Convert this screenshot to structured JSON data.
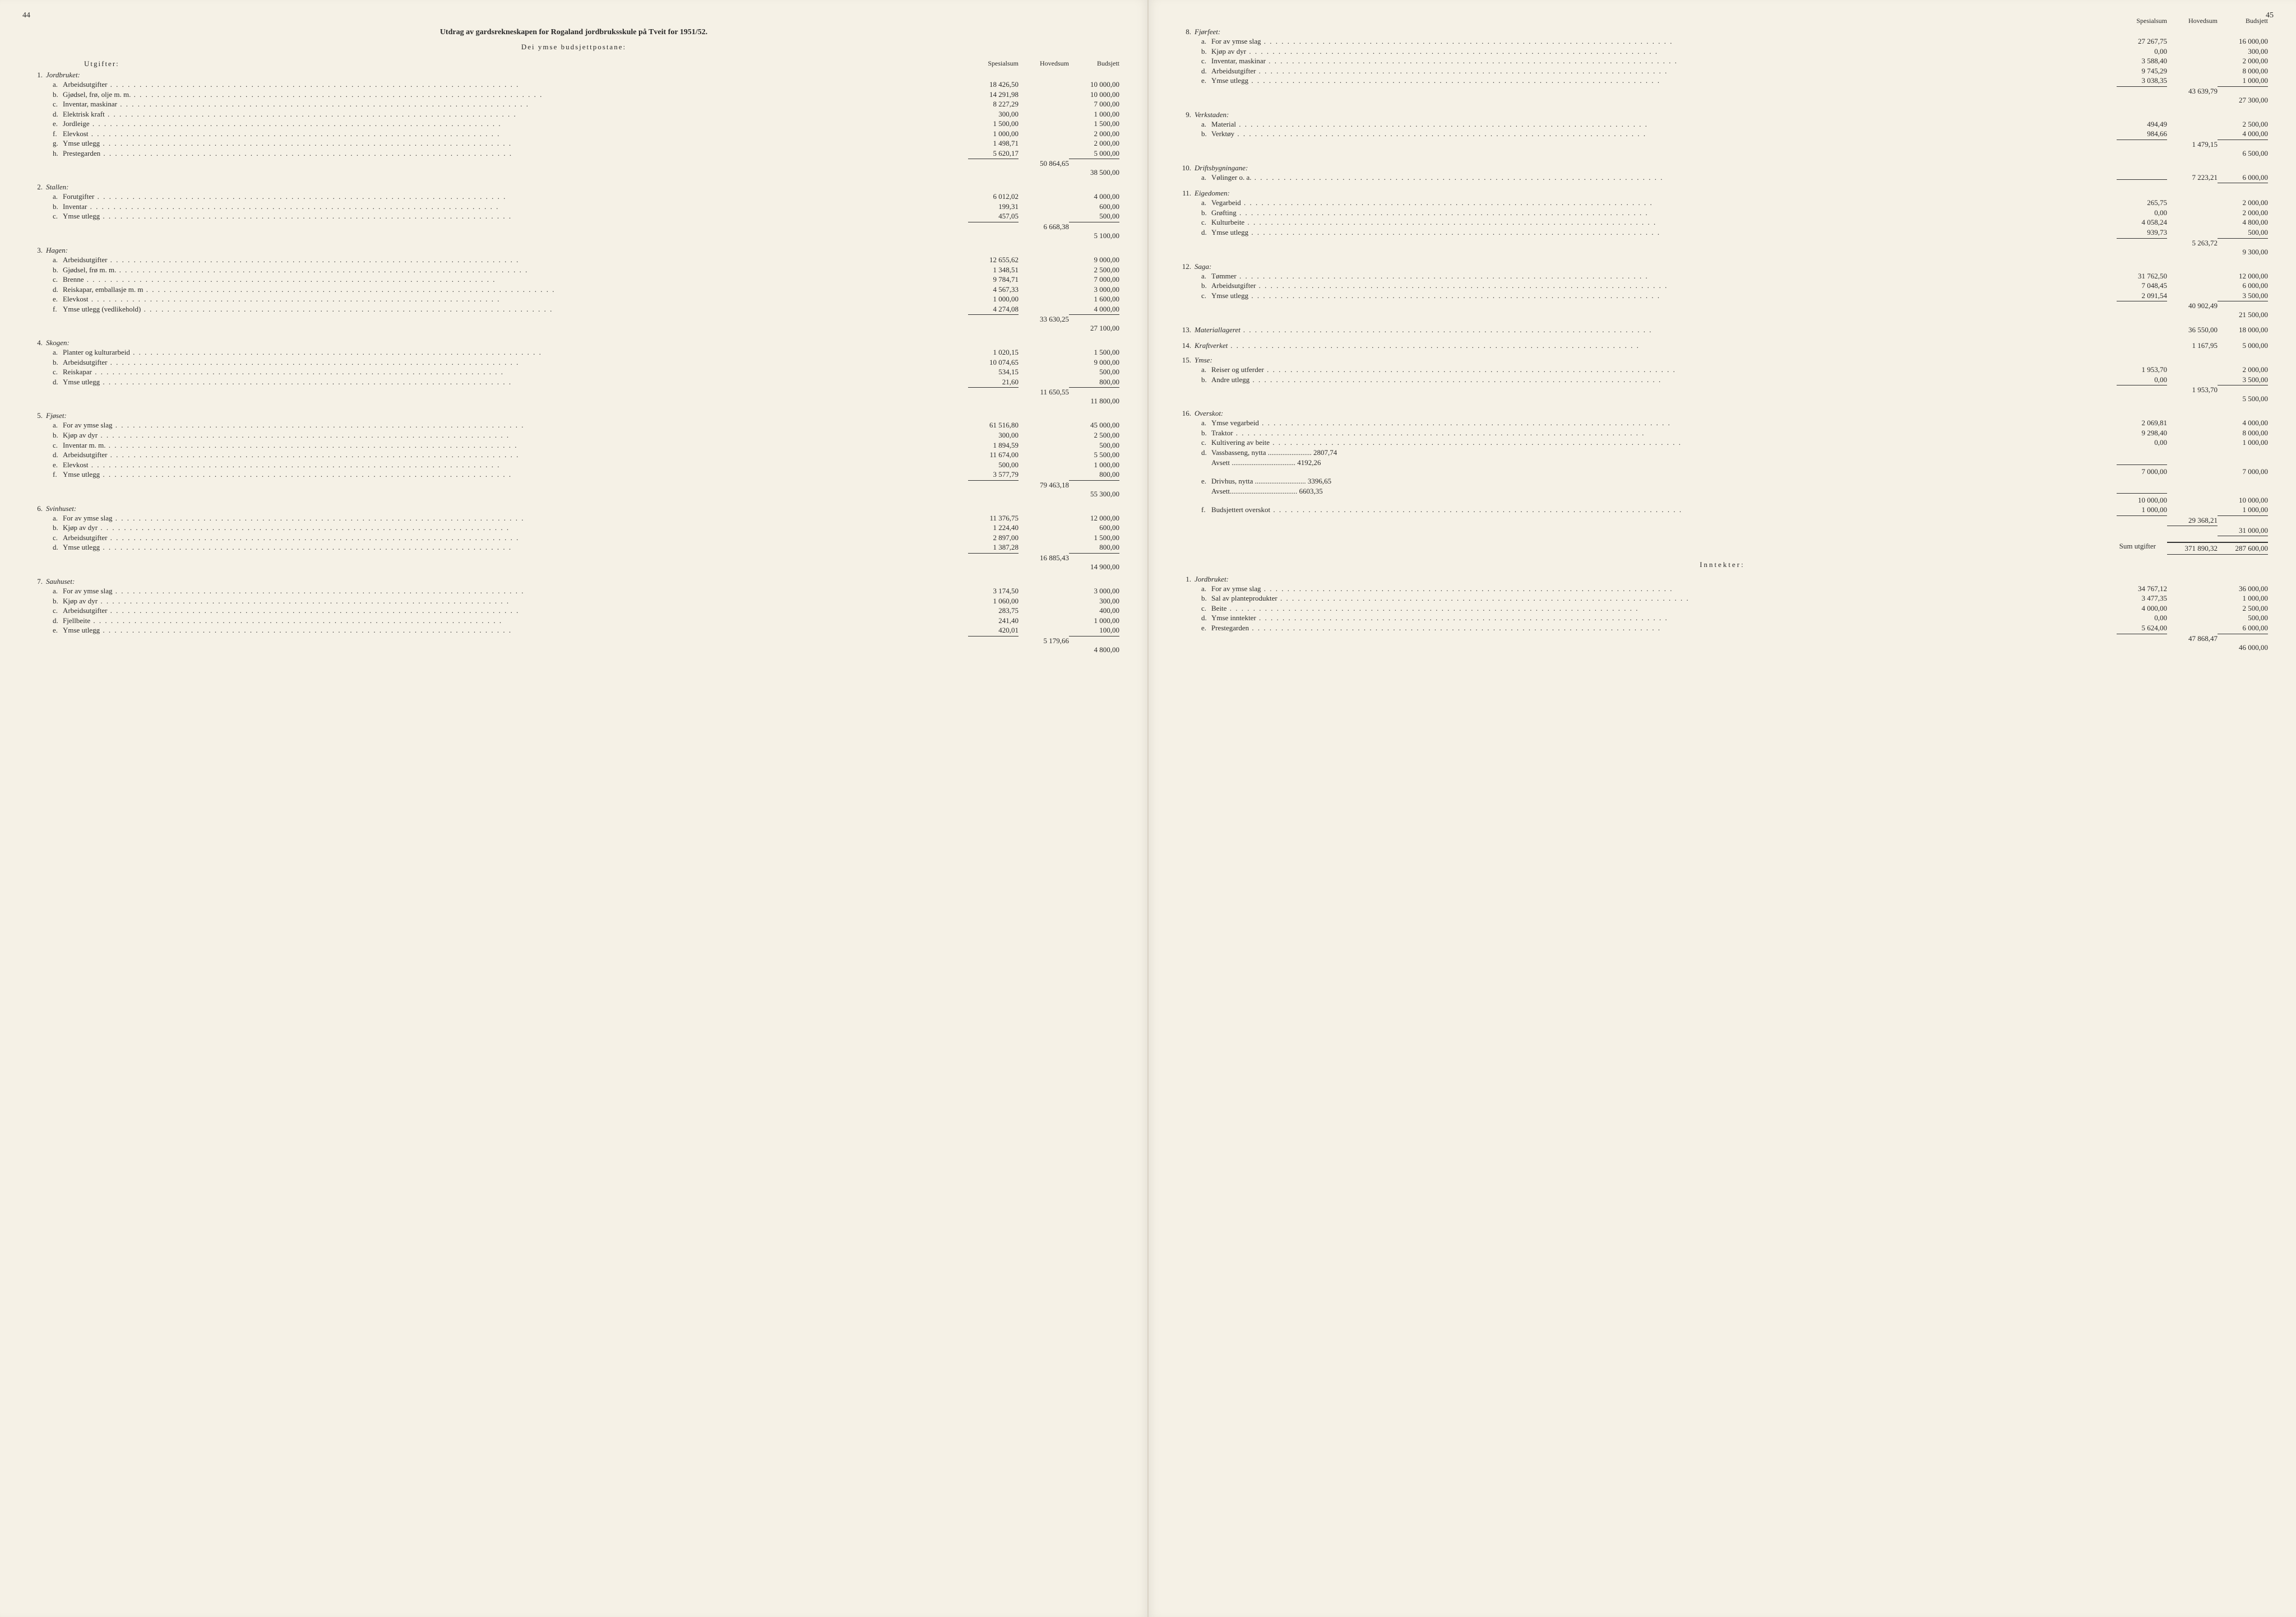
{
  "pageLeft": "44",
  "pageRight": "45",
  "title": "Utdrag av gardsrekneskapen for Rogaland jordbruksskule på Tveit for 1951/52.",
  "subtitle": "Dei ymse budsjettpostane:",
  "headers": {
    "utgifter": "Utgifter:",
    "inntekter": "Inntekter:",
    "spesialsum": "Spesialsum",
    "hovedsum": "Hovedsum",
    "budsjett": "Budsjett"
  },
  "sumUtgifterLabel": "Sum utgifter",
  "sumUtgifterHoved": "371 890,32",
  "sumUtgifterBud": "287 600,00",
  "utgifter": [
    {
      "n": "1.",
      "name": "Jordbruket:",
      "hoved": "50 864,65",
      "budTotal": "38 500,00",
      "items": [
        {
          "l": "a.",
          "t": "Arbeidsutgifter",
          "s": "18 426,50",
          "b": "10 000,00"
        },
        {
          "l": "b.",
          "t": "Gjødsel, frø, olje m. m.",
          "s": "14 291,98",
          "b": "10 000,00"
        },
        {
          "l": "c.",
          "t": "Inventar, maskinar",
          "s": "8 227,29",
          "b": "7 000,00"
        },
        {
          "l": "d.",
          "t": "Elektrisk kraft",
          "s": "300,00",
          "b": "1 000,00"
        },
        {
          "l": "e.",
          "t": "Jordleige",
          "s": "1 500,00",
          "b": "1 500,00"
        },
        {
          "l": "f.",
          "t": "Elevkost",
          "s": "1 000,00",
          "b": "2 000,00"
        },
        {
          "l": "g.",
          "t": "Ymse utlegg",
          "s": "1 498,71",
          "b": "2 000,00"
        },
        {
          "l": "h.",
          "t": "Prestegarden",
          "s": "5 620,17",
          "b": "5 000,00"
        }
      ]
    },
    {
      "n": "2.",
      "name": "Stallen:",
      "hoved": "6 668,38",
      "budTotal": "5 100,00",
      "items": [
        {
          "l": "a.",
          "t": "Forutgifter",
          "s": "6 012,02",
          "b": "4 000,00"
        },
        {
          "l": "b.",
          "t": "Inventar",
          "s": "199,31",
          "b": "600,00"
        },
        {
          "l": "c.",
          "t": "Ymse utlegg",
          "s": "457,05",
          "b": "500,00"
        }
      ]
    },
    {
      "n": "3.",
      "name": "Hagen:",
      "hoved": "33 630,25",
      "budTotal": "27 100,00",
      "items": [
        {
          "l": "a.",
          "t": "Arbeidsutgifter",
          "s": "12 655,62",
          "b": "9 000,00"
        },
        {
          "l": "b.",
          "t": "Gjødsel, frø m. m.",
          "s": "1 348,51",
          "b": "2 500,00"
        },
        {
          "l": "c.",
          "t": "Brenne",
          "s": "9 784,71",
          "b": "7 000,00"
        },
        {
          "l": "d.",
          "t": "Reiskapar, emballasje m. m",
          "s": "4 567,33",
          "b": "3 000,00"
        },
        {
          "l": "e.",
          "t": "Elevkost",
          "s": "1 000,00",
          "b": "1 600,00"
        },
        {
          "l": "f.",
          "t": "Ymse utlegg (vedlikehold)",
          "s": "4 274,08",
          "b": "4 000,00"
        }
      ]
    },
    {
      "n": "4.",
      "name": "Skogen:",
      "hoved": "11 650,55",
      "budTotal": "11 800,00",
      "items": [
        {
          "l": "a.",
          "t": "Planter og kulturarbeid",
          "s": "1 020,15",
          "b": "1 500,00"
        },
        {
          "l": "b.",
          "t": "Arbeidsutgifter",
          "s": "10 074,65",
          "b": "9 000,00"
        },
        {
          "l": "c.",
          "t": "Reiskapar",
          "s": "534,15",
          "b": "500,00"
        },
        {
          "l": "d.",
          "t": "Ymse utlegg",
          "s": "21,60",
          "b": "800,00"
        }
      ]
    },
    {
      "n": "5.",
      "name": "Fjøset:",
      "hoved": "79 463,18",
      "budTotal": "55 300,00",
      "items": [
        {
          "l": "a.",
          "t": "For av ymse slag",
          "s": "61 516,80",
          "b": "45 000,00"
        },
        {
          "l": "b.",
          "t": "Kjøp av dyr",
          "s": "300,00",
          "b": "2 500,00"
        },
        {
          "l": "c.",
          "t": "Inventar m. m.",
          "s": "1 894,59",
          "b": "500,00"
        },
        {
          "l": "d.",
          "t": "Arbeidsutgifter",
          "s": "11 674,00",
          "b": "5 500,00"
        },
        {
          "l": "e.",
          "t": "Elevkost",
          "s": "500,00",
          "b": "1 000,00"
        },
        {
          "l": "f.",
          "t": "Ymse utlegg",
          "s": "3 577,79",
          "b": "800,00"
        }
      ]
    },
    {
      "n": "6.",
      "name": "Svinhuset:",
      "hoved": "16 885,43",
      "budTotal": "14 900,00",
      "items": [
        {
          "l": "a.",
          "t": "For av ymse slag",
          "s": "11 376,75",
          "b": "12 000,00"
        },
        {
          "l": "b.",
          "t": "Kjøp av dyr",
          "s": "1 224,40",
          "b": "600,00"
        },
        {
          "l": "c.",
          "t": "Arbeidsutgifter",
          "s": "2 897,00",
          "b": "1 500,00"
        },
        {
          "l": "d.",
          "t": "Ymse utlegg",
          "s": "1 387,28",
          "b": "800,00"
        }
      ]
    },
    {
      "n": "7.",
      "name": "Sauhuset:",
      "hoved": "5 179,66",
      "budTotal": "4 800,00",
      "items": [
        {
          "l": "a.",
          "t": "For av ymse slag",
          "s": "3 174,50",
          "b": "3 000,00"
        },
        {
          "l": "b.",
          "t": "Kjøp av dyr",
          "s": "1 060,00",
          "b": "300,00"
        },
        {
          "l": "c.",
          "t": "Arbeidsutgifter",
          "s": "283,75",
          "b": "400,00"
        },
        {
          "l": "d.",
          "t": "Fjellbeite",
          "s": "241,40",
          "b": "1 000,00"
        },
        {
          "l": "e.",
          "t": "Ymse utlegg",
          "s": "420,01",
          "b": "100,00"
        }
      ]
    }
  ],
  "utgifterR": [
    {
      "n": "8.",
      "name": "Fjørfeet:",
      "hoved": "43 639,79",
      "budTotal": "27 300,00",
      "items": [
        {
          "l": "a.",
          "t": "For av ymse slag",
          "s": "27 267,75",
          "b": "16 000,00"
        },
        {
          "l": "b.",
          "t": "Kjøp av dyr",
          "s": "0,00",
          "b": "300,00"
        },
        {
          "l": "c.",
          "t": "Inventar, maskinar",
          "s": "3 588,40",
          "b": "2 000,00"
        },
        {
          "l": "d.",
          "t": "Arbeidsutgifter",
          "s": "9 745,29",
          "b": "8 000,00"
        },
        {
          "l": "e.",
          "t": "Ymse utlegg",
          "s": "3 038,35",
          "b": "1 000,00"
        }
      ]
    },
    {
      "n": "9.",
      "name": "Verkstaden:",
      "hoved": "1 479,15",
      "budTotal": "6 500,00",
      "items": [
        {
          "l": "a.",
          "t": "Material",
          "s": "494,49",
          "b": "2 500,00"
        },
        {
          "l": "b.",
          "t": "Verktøy",
          "s": "984,66",
          "b": "4 000,00"
        }
      ]
    },
    {
      "n": "10.",
      "name": "Driftsbygningane:",
      "hoved": "7 223,21",
      "budTotal": "6 000,00",
      "singleHoved": true,
      "items": [
        {
          "l": "a.",
          "t": "Vølinger o. a.",
          "s": "",
          "b": ""
        }
      ]
    },
    {
      "n": "11.",
      "name": "Eigedomen:",
      "hoved": "5 263,72",
      "budTotal": "9 300,00",
      "items": [
        {
          "l": "a.",
          "t": "Vegarbeid",
          "s": "265,75",
          "b": "2 000,00"
        },
        {
          "l": "b.",
          "t": "Grøfting",
          "s": "0,00",
          "b": "2 000,00"
        },
        {
          "l": "c.",
          "t": "Kulturbeite",
          "s": "4 058,24",
          "b": "4 800,00"
        },
        {
          "l": "d.",
          "t": "Ymse utlegg",
          "s": "939,73",
          "b": "500,00"
        }
      ]
    },
    {
      "n": "12.",
      "name": "Saga:",
      "hoved": "40 902,49",
      "budTotal": "21 500,00",
      "items": [
        {
          "l": "a.",
          "t": "Tømmer",
          "s": "31 762,50",
          "b": "12 000,00"
        },
        {
          "l": "b.",
          "t": "Arbeidsutgifter",
          "s": "7 048,45",
          "b": "6 000,00"
        },
        {
          "l": "c.",
          "t": "Ymse utlegg",
          "s": "2 091,54",
          "b": "3 500,00"
        }
      ]
    },
    {
      "n": "13.",
      "name": "Materiallageret",
      "hoved": "36 550,00",
      "budTotal": "18 000,00",
      "flat": true
    },
    {
      "n": "14.",
      "name": "Kraftverket",
      "hoved": "1 167,95",
      "budTotal": "5 000,00",
      "flat": true
    },
    {
      "n": "15.",
      "name": "Ymse:",
      "hoved": "1 953,70",
      "budTotal": "5 500,00",
      "items": [
        {
          "l": "a.",
          "t": "Reiser og utferder",
          "s": "1 953,70",
          "b": "2 000,00"
        },
        {
          "l": "b.",
          "t": "Andre utlegg",
          "s": "0,00",
          "b": "3 500,00"
        }
      ]
    },
    {
      "n": "16.",
      "name": "Overskot:",
      "hoved": "29 368,21",
      "budTotal": "31 000,00",
      "special": true
    }
  ],
  "overskot": {
    "a": {
      "t": "Ymse vegarbeid",
      "s": "2 069,81",
      "b": "4 000,00"
    },
    "b": {
      "t": "Traktor",
      "s": "9 298,40",
      "b": "8 000,00"
    },
    "c": {
      "t": "Kultivering av beite",
      "s": "0,00",
      "b": "1 000,00"
    },
    "d1": {
      "t": "Vassbasseng, nytta",
      "v": "2807,74"
    },
    "d2": {
      "t": "Avsett",
      "v": "4192,26"
    },
    "dSum": {
      "s": "7 000,00",
      "b": "7 000,00"
    },
    "e1": {
      "t": "Drivhus, nytta",
      "v": "3396,65"
    },
    "e2": {
      "t": "Avsett",
      "v": "6603,35"
    },
    "eSum": {
      "s": "10 000,00",
      "b": "10 000,00"
    },
    "f": {
      "t": "Budsjettert overskot",
      "s": "1 000,00",
      "b": "1 000,00"
    }
  },
  "inntekter": [
    {
      "n": "1.",
      "name": "Jordbruket:",
      "hoved": "47 868,47",
      "budTotal": "46 000,00",
      "items": [
        {
          "l": "a.",
          "t": "For av ymse slag",
          "s": "34 767,12",
          "b": "36 000,00"
        },
        {
          "l": "b.",
          "t": "Sal av planteprodukter",
          "s": "3 477,35",
          "b": "1 000,00"
        },
        {
          "l": "c.",
          "t": "Beite",
          "s": "4 000,00",
          "b": "2 500,00"
        },
        {
          "l": "d.",
          "t": "Ymse inntekter",
          "s": "0,00",
          "b": "500,00"
        },
        {
          "l": "e.",
          "t": "Prestegarden",
          "s": "5 624,00",
          "b": "6 000,00"
        }
      ]
    }
  ]
}
